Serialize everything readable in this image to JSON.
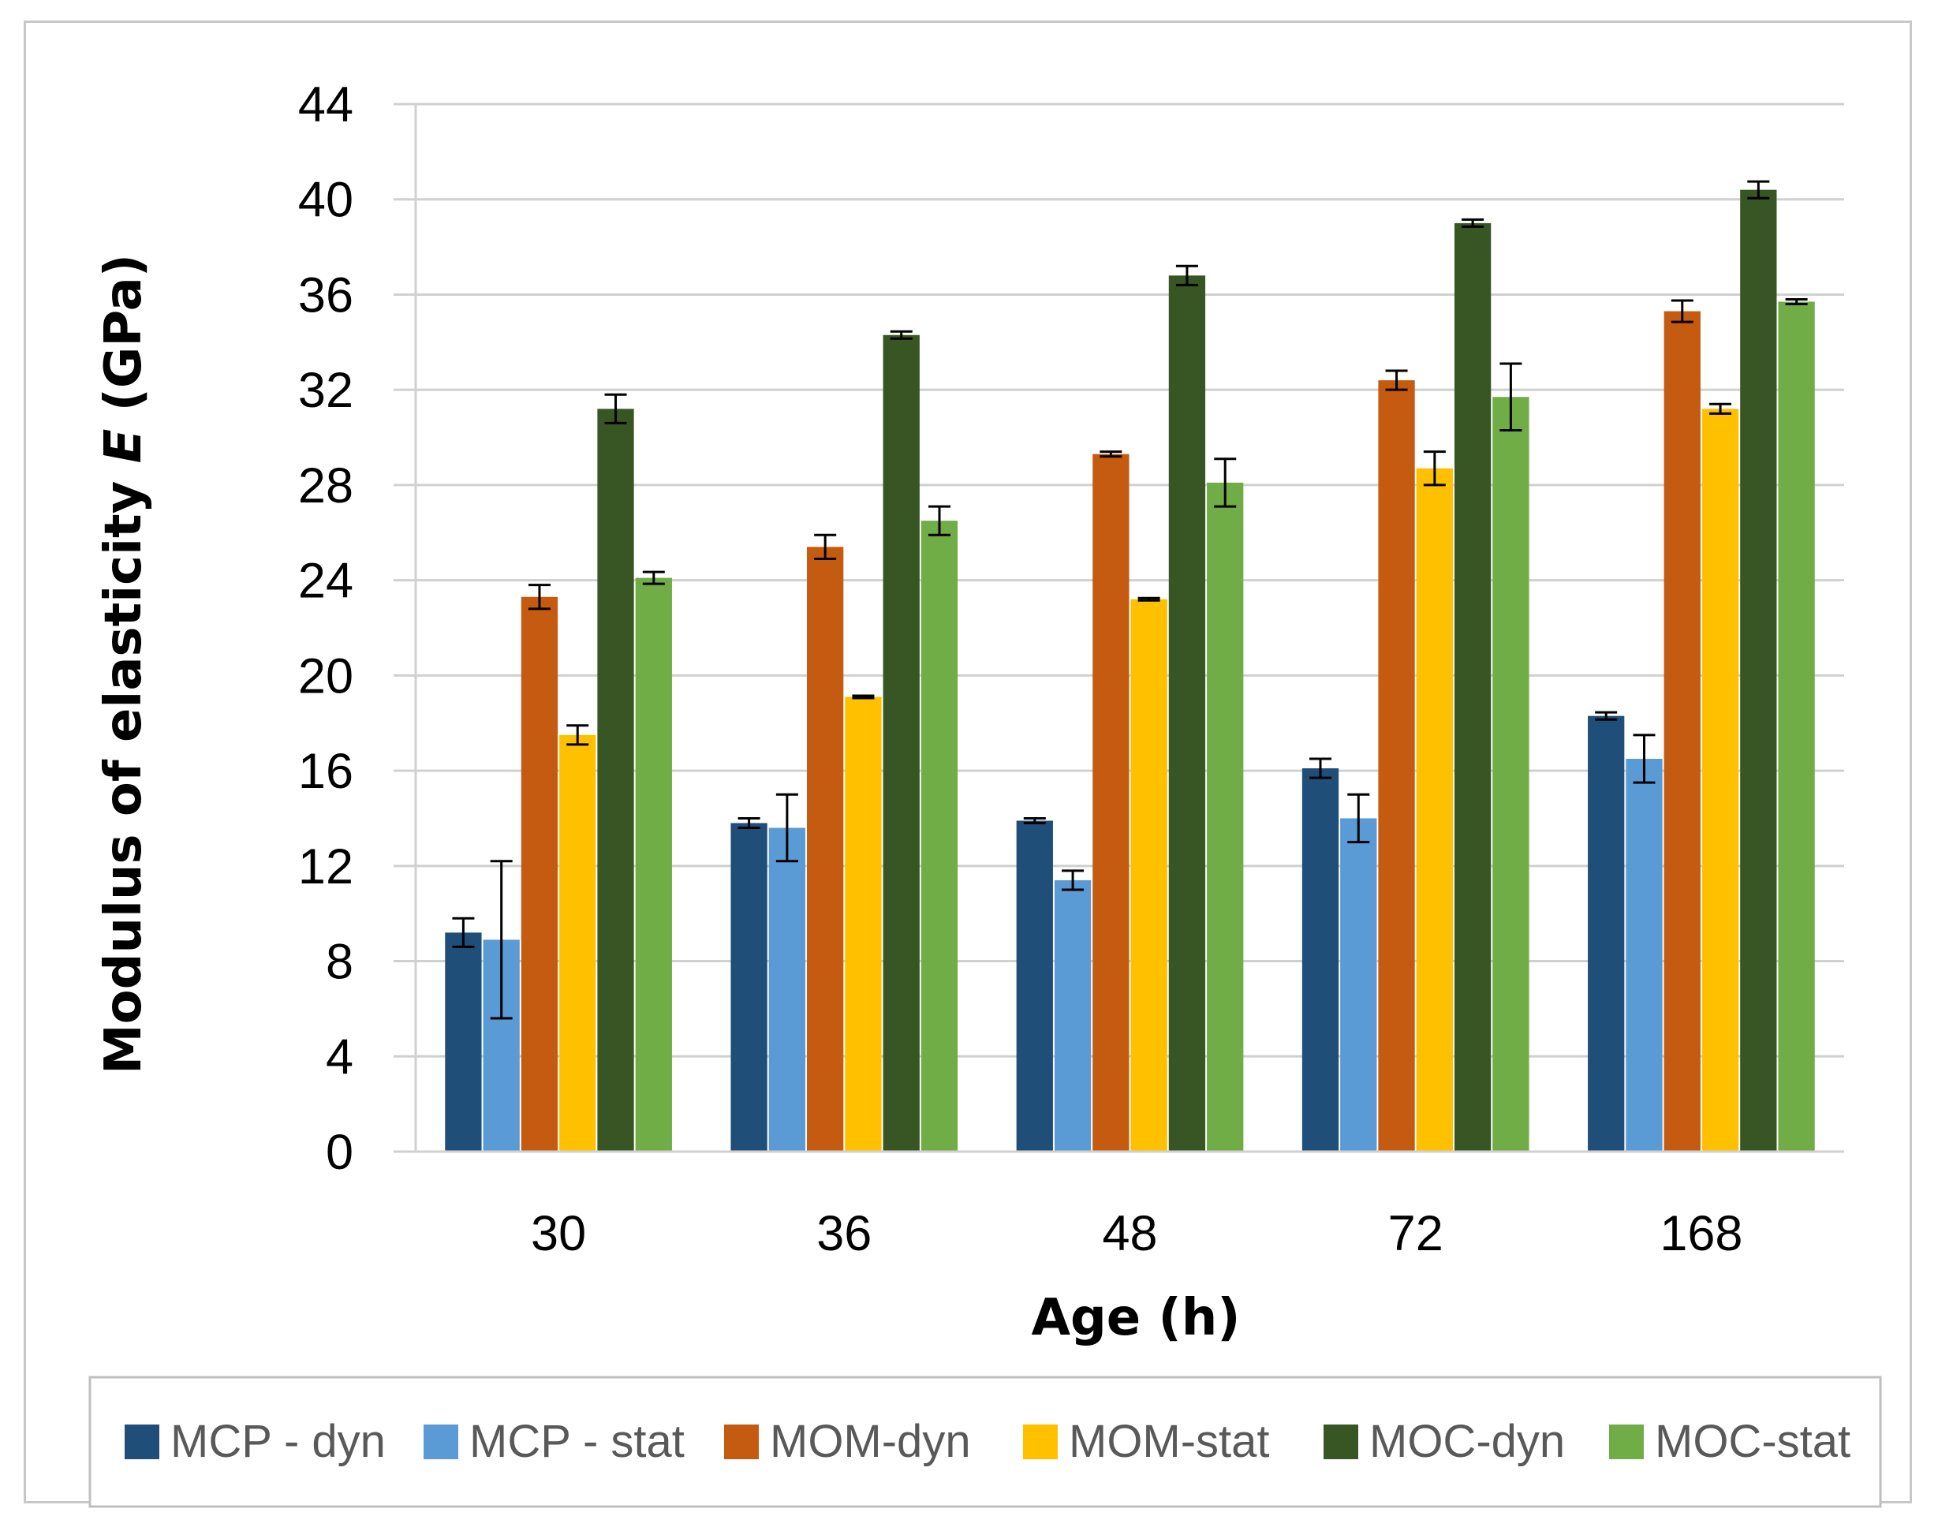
{
  "chart_data": {
    "type": "bar",
    "title": "",
    "xlabel": "Age (h)",
    "ylabel_prefix": "Modulus of elasticity ",
    "ylabel_italic": "E",
    "ylabel_suffix": " (GPa)",
    "ylim": [
      0,
      44
    ],
    "ytick_step": 4,
    "grid": true,
    "legend_position": "bottom",
    "categories": [
      "30",
      "36",
      "48",
      "72",
      "168"
    ],
    "series": [
      {
        "name": "MCP - dyn",
        "color": "#1f4e79",
        "values": [
          9.2,
          13.8,
          13.9,
          16.1,
          18.3
        ],
        "errors": [
          0.6,
          0.2,
          0.1,
          0.4,
          0.15
        ]
      },
      {
        "name": "MCP - stat",
        "color": "#5b9bd5",
        "values": [
          8.9,
          13.6,
          11.4,
          14.0,
          16.5
        ],
        "errors": [
          3.3,
          1.4,
          0.4,
          1.0,
          1.0
        ]
      },
      {
        "name": "MOM-dyn",
        "color": "#c55a11",
        "values": [
          23.3,
          25.4,
          29.3,
          32.4,
          35.3
        ],
        "errors": [
          0.5,
          0.5,
          0.1,
          0.4,
          0.45
        ]
      },
      {
        "name": "MOM-stat",
        "color": "#ffc000",
        "values": [
          17.5,
          19.1,
          23.2,
          28.7,
          31.2
        ],
        "errors": [
          0.4,
          0.05,
          0.05,
          0.7,
          0.2
        ]
      },
      {
        "name": "MOC-dyn",
        "color": "#375623",
        "values": [
          31.2,
          34.3,
          36.8,
          39.0,
          40.4
        ],
        "errors": [
          0.6,
          0.15,
          0.4,
          0.15,
          0.35
        ]
      },
      {
        "name": "MOC-stat",
        "color": "#70ad47",
        "values": [
          24.1,
          26.5,
          28.1,
          31.7,
          35.7
        ],
        "errors": [
          0.25,
          0.6,
          1.0,
          1.4,
          0.1
        ]
      }
    ]
  }
}
